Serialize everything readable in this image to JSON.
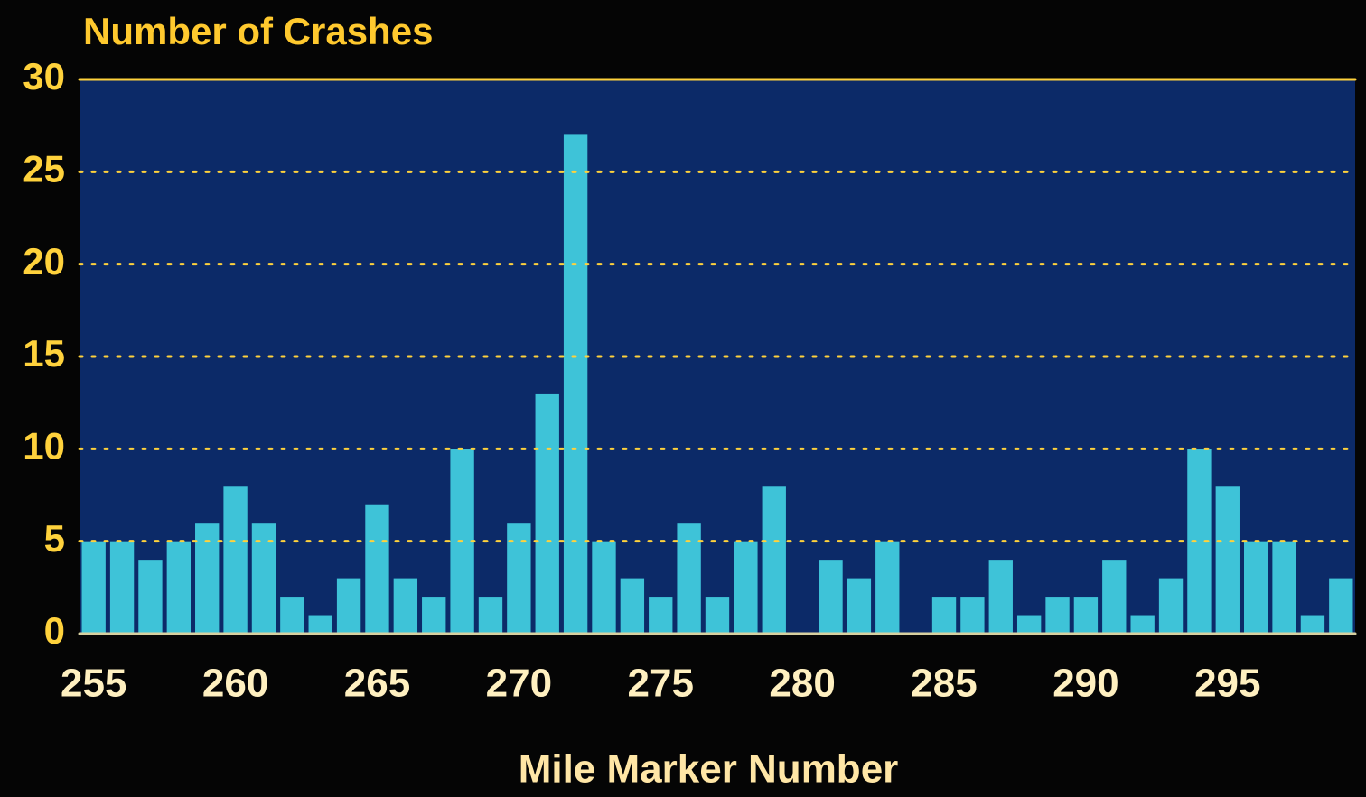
{
  "chart_data": {
    "type": "bar",
    "title": "Number of Crashes",
    "x_label": "Mile Marker Number",
    "x": [
      255,
      256,
      257,
      258,
      259,
      260,
      261,
      262,
      263,
      264,
      265,
      266,
      267,
      268,
      269,
      270,
      271,
      272,
      273,
      274,
      275,
      276,
      277,
      278,
      279,
      280,
      281,
      282,
      283,
      284,
      285,
      286,
      287,
      288,
      289,
      290,
      291,
      292,
      293,
      294,
      295,
      296,
      297,
      298,
      299
    ],
    "values": [
      5,
      5,
      4,
      5,
      6,
      8,
      6,
      2,
      1,
      3,
      7,
      3,
      2,
      10,
      2,
      6,
      13,
      27,
      5,
      3,
      2,
      6,
      2,
      5,
      8,
      0,
      4,
      3,
      5,
      0,
      2,
      2,
      4,
      1,
      2,
      2,
      4,
      1,
      3,
      10,
      8,
      5,
      5,
      1,
      3
    ],
    "color": "#3ec3d8",
    "xlim": [
      254.5,
      299.5
    ],
    "xticks": [
      255,
      260,
      265,
      270,
      275,
      280,
      285,
      290,
      295
    ],
    "ylim": [
      0,
      30
    ],
    "yticks": [
      0,
      5,
      10,
      15,
      20,
      25,
      30
    ],
    "grid": true
  }
}
